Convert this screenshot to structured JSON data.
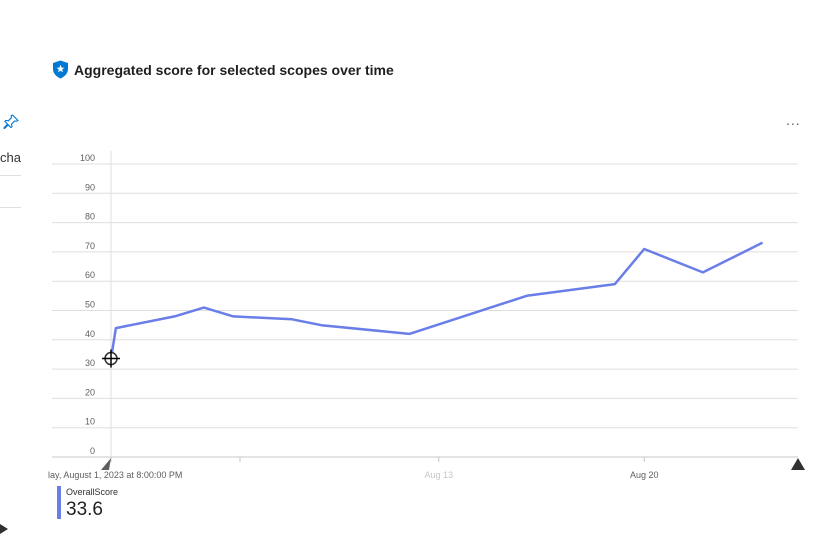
{
  "header": {
    "title": "Aggregated score for selected scopes over time",
    "icon": "shield-star-icon"
  },
  "left_strip": {
    "cut_label": "cha"
  },
  "toolbar": {
    "more_label": "..."
  },
  "colors": {
    "series": "#6a7ee8",
    "accent": "#0078d4"
  },
  "chart_data": {
    "type": "line",
    "title": "Aggregated score for selected scopes over time",
    "xlabel": "",
    "ylabel": "",
    "ylim": [
      0,
      100
    ],
    "yticks": [
      0,
      10,
      20,
      30,
      40,
      50,
      60,
      70,
      80,
      90,
      100
    ],
    "xlim": [
      "2023-08-01T20:00",
      "2023-08-25"
    ],
    "xtick_labels": [
      {
        "date": "2023-08-01T20:00",
        "label": "lay, August 1, 2023 at 8:00:00 PM"
      },
      {
        "date": "2023-08-13",
        "label": "Aug 13"
      },
      {
        "date": "2023-08-20",
        "label": "Aug 20"
      }
    ],
    "grid": true,
    "series": [
      {
        "name": "OverallScore",
        "points": [
          [
            "2023-08-01T20:00",
            33.6
          ],
          [
            "2023-08-02",
            44
          ],
          [
            "2023-08-04",
            48
          ],
          [
            "2023-08-05",
            51
          ],
          [
            "2023-08-06",
            48
          ],
          [
            "2023-08-08",
            47
          ],
          [
            "2023-08-09",
            45
          ],
          [
            "2023-08-12",
            42
          ],
          [
            "2023-08-16",
            55
          ],
          [
            "2023-08-19",
            59
          ],
          [
            "2023-08-20",
            71
          ],
          [
            "2023-08-22",
            63
          ],
          [
            "2023-08-23",
            68
          ],
          [
            "2023-08-24",
            73
          ]
        ]
      }
    ],
    "legend": {
      "name": "OverallScore",
      "value": "33.6",
      "position": "bottom-left"
    }
  }
}
